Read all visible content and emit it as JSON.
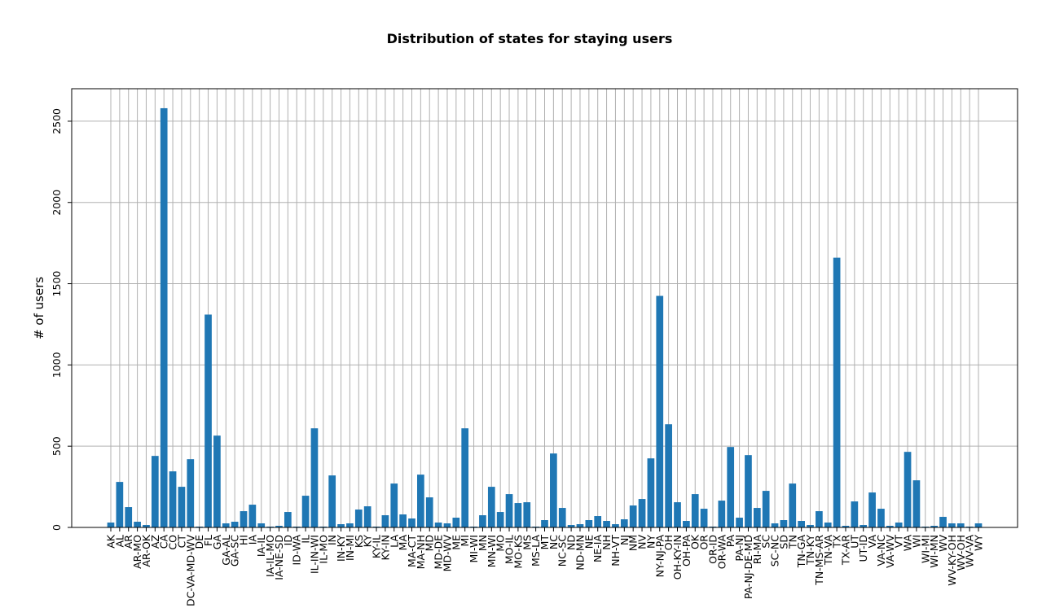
{
  "chart_data": {
    "type": "bar",
    "title": "Distribution of states for staying users",
    "xlabel": "",
    "ylabel": "# of users",
    "ylim": [
      0,
      2700
    ],
    "yticks": [
      0,
      500,
      1000,
      1500,
      2000,
      2500
    ],
    "grid": true,
    "bar_color": "#1f77b4",
    "categories": [
      "AK",
      "AL",
      "AR",
      "AR-MO",
      "AR-OK",
      "AZ",
      "CA",
      "CO",
      "CT",
      "DC-VA-MD-WV",
      "DE",
      "FL",
      "GA",
      "GA-AL",
      "GA-SC",
      "HI",
      "IA",
      "IA-IL",
      "IA-IL-MO",
      "IA-NE-SD",
      "ID",
      "ID-WA",
      "IL",
      "IL-IN-WI",
      "IL-MO",
      "IN",
      "IN-KY",
      "IN-MI",
      "KS",
      "KY",
      "KY-IL",
      "KY-IN",
      "LA",
      "MA",
      "MA-CT",
      "MA-NH",
      "MD",
      "MD-DE",
      "MD-WV",
      "ME",
      "MI",
      "MI-WI",
      "MN",
      "MN-WI",
      "MO",
      "MO-IL",
      "MO-KS",
      "MS",
      "MS-LA",
      "MT",
      "NC",
      "NC-SC",
      "ND",
      "ND-MN",
      "NE",
      "NE-IA",
      "NH",
      "NH-VT",
      "NJ",
      "NM",
      "NV",
      "NY",
      "NY-NJ-PA",
      "OH",
      "OH-KY-IN",
      "OH-PA",
      "OK",
      "OR",
      "OR-ID",
      "OR-WA",
      "PA",
      "PA-NJ",
      "PA-NJ-DE-MD",
      "RI-MA",
      "SC",
      "SC-NC",
      "SD",
      "TN",
      "TN-GA",
      "TN-KY",
      "TN-MS-AR",
      "TN-VA",
      "TX",
      "TX-AR",
      "UT",
      "UT-ID",
      "VA",
      "VA-NC",
      "VA-WV",
      "VT",
      "WA",
      "WI",
      "WI-MI",
      "WI-MN",
      "WV",
      "WV-KY-OH",
      "WV-OH",
      "WV-VA",
      "WY"
    ],
    "values": [
      30,
      280,
      125,
      35,
      15,
      440,
      2580,
      345,
      250,
      420,
      5,
      1310,
      565,
      25,
      35,
      100,
      140,
      25,
      5,
      10,
      95,
      5,
      195,
      610,
      5,
      320,
      20,
      25,
      110,
      130,
      5,
      75,
      270,
      80,
      55,
      325,
      185,
      30,
      25,
      60,
      610,
      5,
      75,
      250,
      95,
      205,
      150,
      155,
      5,
      45,
      455,
      120,
      15,
      20,
      45,
      70,
      40,
      20,
      50,
      135,
      175,
      425,
      1425,
      635,
      155,
      40,
      205,
      115,
      5,
      165,
      495,
      60,
      445,
      120,
      225,
      25,
      45,
      270,
      40,
      15,
      100,
      30,
      1660,
      10,
      160,
      15,
      215,
      115,
      10,
      30,
      465,
      290,
      5,
      10,
      65,
      25,
      25,
      5,
      25
    ]
  }
}
